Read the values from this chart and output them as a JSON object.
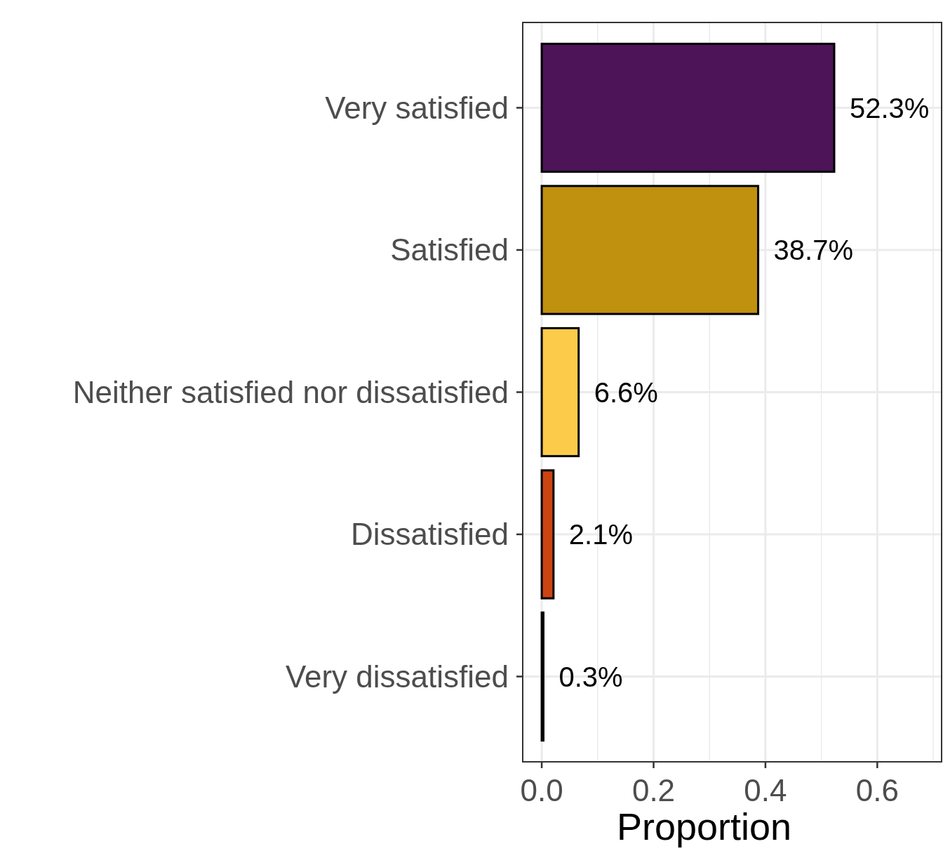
{
  "chart_data": {
    "type": "bar",
    "orientation": "horizontal",
    "xlabel": "Proportion",
    "categories": [
      "Very satisfied",
      "Satisfied",
      "Neither satisfied nor dissatisfied",
      "Dissatisfied",
      "Very dissatisfied"
    ],
    "values": [
      0.523,
      0.387,
      0.066,
      0.021,
      0.003
    ],
    "colors": [
      "#4d1457",
      "#c0900f",
      "#fdcb4a",
      "#cc4412",
      "#000000"
    ],
    "value_labels": [
      "52.3%",
      "38.7%",
      "6.6%",
      "2.1%",
      "0.3%"
    ],
    "xlim": [
      -0.034,
      0.715
    ],
    "xticks": [
      {
        "value": 0,
        "label": "0.0"
      },
      {
        "value": 0.2,
        "label": "0.2"
      },
      {
        "value": 0.4,
        "label": "0.4"
      },
      {
        "value": 0.6,
        "label": "0.6"
      }
    ],
    "grid": true
  }
}
